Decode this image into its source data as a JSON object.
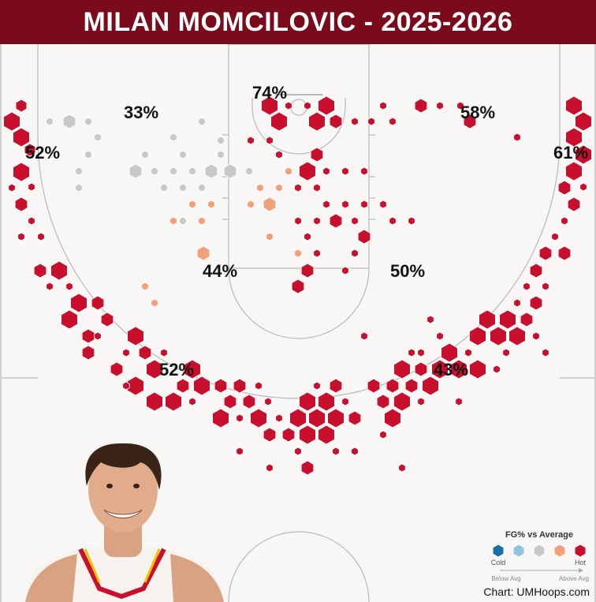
{
  "title": "MILAN MOMCILOVIC - 2025-2026",
  "chart_data": {
    "type": "hexbin shot chart",
    "zones": [
      {
        "label": "74%",
        "zone": "restricted area"
      },
      {
        "label": "33%",
        "zone": "left elbow / mid-range left"
      },
      {
        "label": "58%",
        "zone": "right mid-range baseline"
      },
      {
        "label": "52%",
        "zone": "left corner three"
      },
      {
        "label": "61%",
        "zone": "right corner three"
      },
      {
        "label": "44%",
        "zone": "left paint / short mid-range"
      },
      {
        "label": "50%",
        "zone": "right mid-range"
      },
      {
        "label": "52%",
        "zone": "left wing three"
      },
      {
        "label": "43%",
        "zone": "right wing three"
      }
    ],
    "color_scale": {
      "cold": "#1a6ea8",
      "below": "#8fc3df",
      "average": "#c8c8c8",
      "above": "#f2a07b",
      "hot": "#c8102e"
    }
  },
  "legend": {
    "title": "FG% vs Average",
    "cold_label": "Cold",
    "hot_label": "Hot",
    "below_label": "Below Avg",
    "above_label": "Above Avg"
  },
  "credit": "Chart: UMHoops.com"
}
